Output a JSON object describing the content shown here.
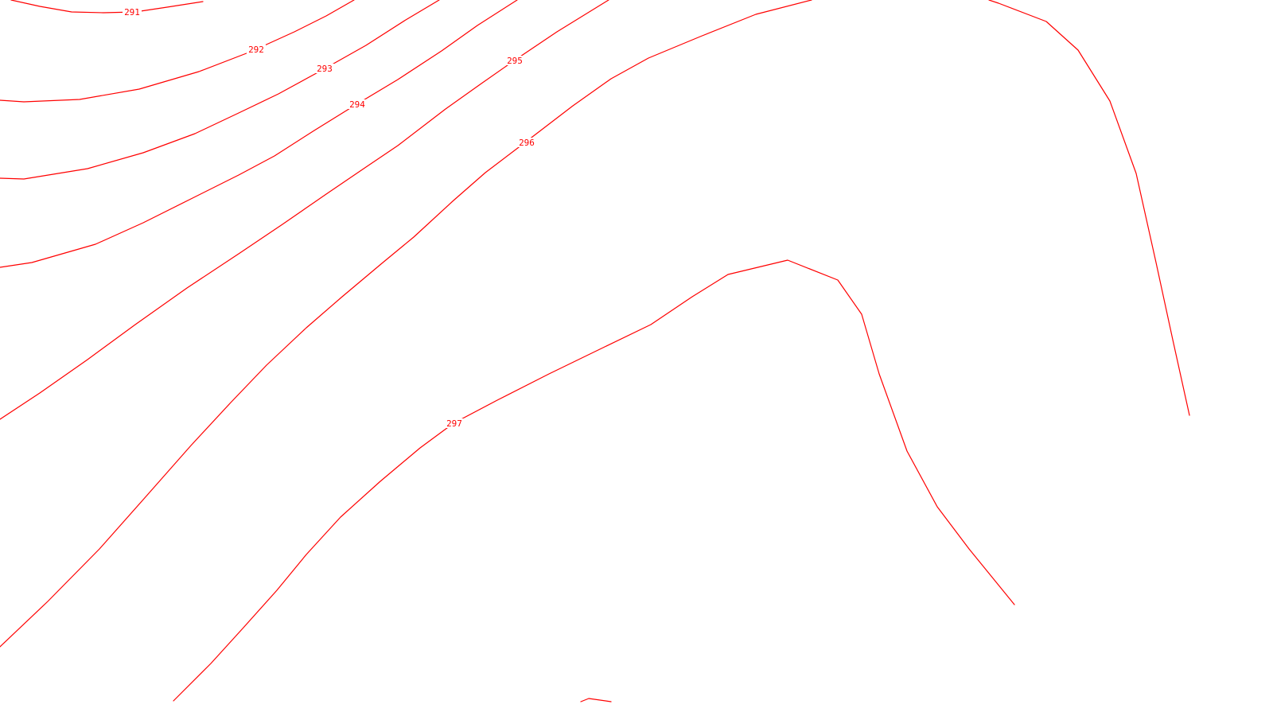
{
  "map": {
    "background": "#ffffff",
    "contour_color": "#ff0000",
    "contours": [
      {
        "id": "291",
        "label": "291"
      },
      {
        "id": "292",
        "label": "292"
      },
      {
        "id": "293",
        "label": "293"
      },
      {
        "id": "294",
        "label": "294"
      },
      {
        "id": "295",
        "label": "295"
      },
      {
        "id": "296",
        "label": "296"
      },
      {
        "id": "297",
        "label": "297"
      },
      {
        "id": "unlabeled-right",
        "label": ""
      },
      {
        "id": "unlabeled-bottom",
        "label": ""
      }
    ]
  }
}
